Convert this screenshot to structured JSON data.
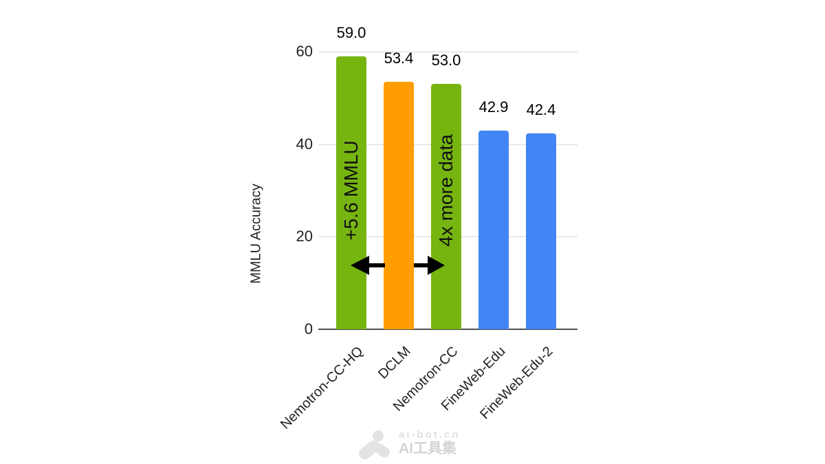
{
  "chart_data": {
    "type": "bar",
    "title": "",
    "xlabel": "",
    "ylabel": "MMLU Accuracy",
    "ylim": [
      0,
      60
    ],
    "yticks": [
      0,
      20,
      40,
      60
    ],
    "grid": true,
    "legend_position": "none",
    "categories": [
      "Nemotron-CC-HQ",
      "DCLM",
      "Nemotron-CC",
      "FineWeb-Edu",
      "FineWeb-Edu-2"
    ],
    "values": [
      59.0,
      53.4,
      53.0,
      42.9,
      42.4
    ],
    "value_labels": [
      "59.0",
      "53.4",
      "53.0",
      "42.9",
      "42.4"
    ],
    "bar_colors": [
      "#76B510",
      "#FF9D00",
      "#76B510",
      "#4285F4",
      "#4285F4"
    ],
    "bar_annotations": [
      {
        "category": "Nemotron-CC-HQ",
        "text": "+5.6 MMLU"
      },
      {
        "category": "Nemotron-CC",
        "text": "4x more data"
      }
    ],
    "arrow_annotation": {
      "type": "horizontal-double-headed",
      "from_category": "Nemotron-CC-HQ",
      "to_category": "Nemotron-CC",
      "color": "#000000"
    },
    "style_colors": {
      "gridline": "#dadada",
      "axis_line": "#4d4d4d",
      "tick_text": "#222222",
      "value_text": "#000000"
    }
  },
  "watermark": {
    "logo": "ai-bot-paw-logo",
    "line1": "ai-bot.cn",
    "line2": "AI工具集"
  }
}
